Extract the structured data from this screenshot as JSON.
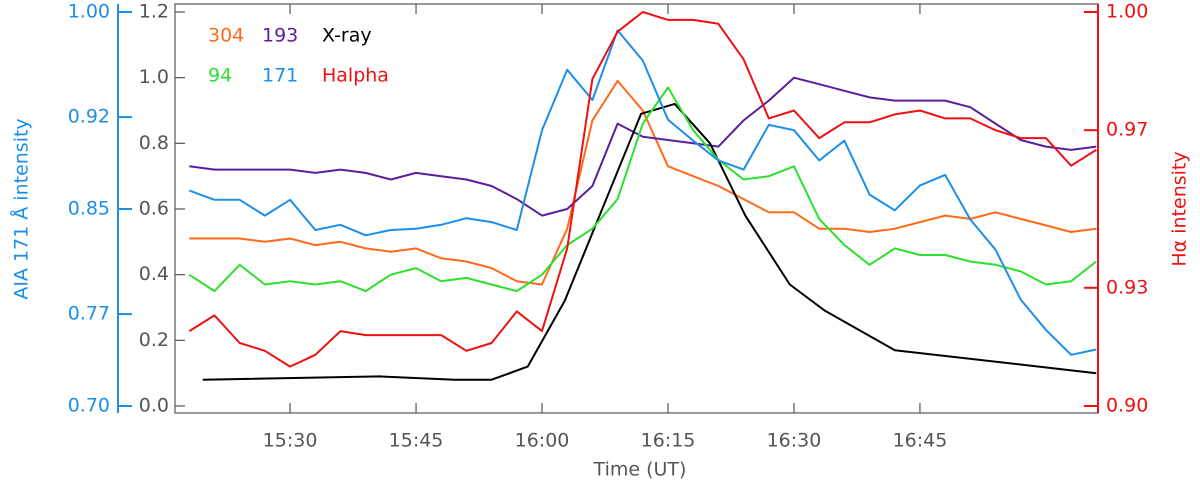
{
  "chart_data": {
    "type": "line",
    "xlabel": "Time (UT)",
    "y3label": "AIA 171 Å intensity",
    "y2label": "Hα intensity",
    "xlim": [
      16.3,
      126.2
    ],
    "xticks": [
      {
        "value": 30,
        "label": "15:30"
      },
      {
        "value": 45,
        "label": "15:45"
      },
      {
        "value": 60,
        "label": "16:00"
      },
      {
        "value": 75,
        "label": "16:15"
      },
      {
        "value": 90,
        "label": "16:30"
      },
      {
        "value": 105,
        "label": "16:45"
      }
    ],
    "ylim": [
      0,
      1.2
    ],
    "yticks": [
      {
        "value": 0,
        "label": "0.0"
      },
      0.2,
      0.4,
      0.6,
      0.8,
      {
        "value": 1,
        "label": "1.0"
      },
      1.2
    ],
    "y2lim": [
      0.9,
      1.0
    ],
    "y2ticks": [
      {
        "value": 0.9,
        "label": "0.90"
      },
      0.93,
      0.97,
      {
        "value": 1,
        "label": "1.00"
      }
    ],
    "y2color": "#ee1111",
    "y3lim": [
      0.7,
      1.0
    ],
    "y3ticks": [
      {
        "value": 0.7,
        "label": "0.70"
      },
      0.77,
      0.85,
      0.92,
      {
        "value": 1,
        "label": "1.00"
      }
    ],
    "y3color": "#1e8fe8",
    "x": [
      18,
      21,
      24,
      27,
      30,
      33,
      36,
      39,
      42,
      45,
      48,
      51,
      54,
      57,
      60,
      63,
      66,
      69,
      72,
      75,
      78,
      81,
      84,
      87,
      90,
      93,
      96,
      99,
      102,
      105,
      108,
      111,
      114,
      117,
      120,
      123,
      126
    ],
    "series": [
      {
        "name": "304",
        "color": "#ff6a1a",
        "values": [
          0.51,
          0.51,
          0.51,
          0.5,
          0.51,
          0.49,
          0.5,
          0.48,
          0.47,
          0.48,
          0.45,
          0.44,
          0.42,
          0.38,
          0.37,
          0.54,
          0.87,
          0.99,
          0.9,
          0.73,
          0.7,
          0.67,
          0.63,
          0.59,
          0.59,
          0.54,
          0.54,
          0.53,
          0.54,
          0.56,
          0.58,
          0.57,
          0.59,
          0.57,
          0.55,
          0.53,
          0.54
        ]
      },
      {
        "name": "193",
        "color": "#5a1e9e",
        "values": [
          0.73,
          0.72,
          0.72,
          0.72,
          0.72,
          0.71,
          0.72,
          0.71,
          0.69,
          0.71,
          0.7,
          0.69,
          0.67,
          0.63,
          0.58,
          0.6,
          0.67,
          0.86,
          0.82,
          0.81,
          0.8,
          0.79,
          0.87,
          0.93,
          1.0,
          0.98,
          0.96,
          0.94,
          0.93,
          0.93,
          0.93,
          0.91,
          0.86,
          0.81,
          0.79,
          0.78,
          0.79
        ]
      },
      {
        "name": "X-ray",
        "color": "#000000",
        "x": [
          19.6,
          40.7,
          49.6,
          54.0,
          58.3,
          62.7,
          71.8,
          75.8,
          80.0,
          84.2,
          89.5,
          93.7,
          102.0,
          126.0
        ],
        "values": [
          0.08,
          0.09,
          0.08,
          0.08,
          0.12,
          0.32,
          0.89,
          0.92,
          0.8,
          0.58,
          0.37,
          0.29,
          0.17,
          0.1
        ]
      },
      {
        "name": "94",
        "color": "#2de02d",
        "values": [
          0.4,
          0.35,
          0.43,
          0.37,
          0.38,
          0.37,
          0.38,
          0.35,
          0.4,
          0.42,
          0.38,
          0.39,
          0.37,
          0.35,
          0.4,
          0.49,
          0.54,
          0.63,
          0.86,
          0.97,
          0.84,
          0.75,
          0.69,
          0.7,
          0.73,
          0.57,
          0.49,
          0.43,
          0.48,
          0.46,
          0.46,
          0.44,
          0.43,
          0.41,
          0.37,
          0.38,
          0.44
        ]
      },
      {
        "name": "171",
        "color": "#1e8fe8",
        "axis": "y3",
        "values": [
          0.864,
          0.857,
          0.857,
          0.845,
          0.857,
          0.834,
          0.838,
          0.83,
          0.834,
          0.835,
          0.838,
          0.843,
          0.84,
          0.834,
          0.91,
          0.956,
          0.933,
          0.986,
          0.963,
          0.918,
          0.902,
          0.887,
          0.88,
          0.914,
          0.91,
          0.887,
          0.902,
          0.861,
          0.849,
          0.868,
          0.876,
          0.842,
          0.819,
          0.781,
          0.758,
          0.739,
          0.743
        ]
      },
      {
        "name": "Halpha",
        "color": "#ee1111",
        "axis": "y2",
        "values": [
          0.919,
          0.923,
          0.916,
          0.914,
          0.91,
          0.913,
          0.919,
          0.918,
          0.918,
          0.918,
          0.918,
          0.914,
          0.916,
          0.924,
          0.919,
          0.94,
          0.983,
          0.995,
          1.0,
          0.998,
          0.998,
          0.997,
          0.988,
          0.973,
          0.975,
          0.968,
          0.972,
          0.972,
          0.974,
          0.975,
          0.973,
          0.973,
          0.97,
          0.968,
          0.968,
          0.961,
          0.965
        ]
      }
    ]
  }
}
